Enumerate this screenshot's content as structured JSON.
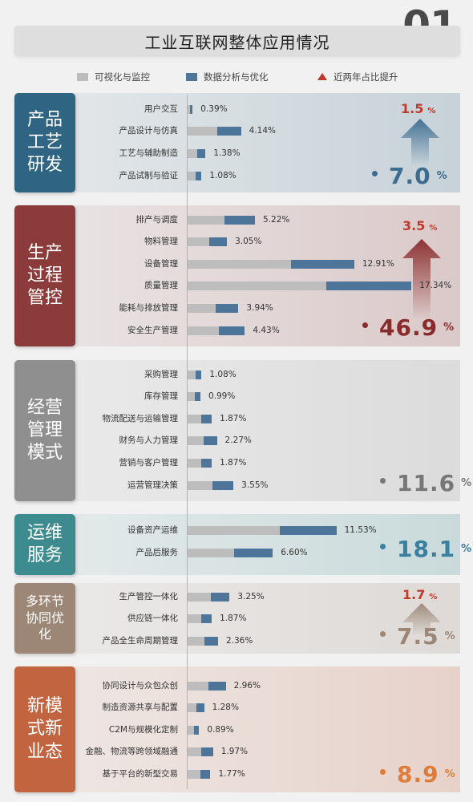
{
  "page": {
    "title": "工业互联网整体应用情况",
    "number": "01"
  },
  "legend": {
    "visual": "可视化与监控",
    "analysis": "数据分析与优化",
    "rise": "近两年占比提升"
  },
  "colors": {
    "visual": "#bdbdbd",
    "analysis": "#4d7599",
    "rise": "#c0392b"
  },
  "chart_data": {
    "type": "bar",
    "series": [
      {
        "name": "可视化与监控"
      },
      {
        "name": "数据分析与优化"
      }
    ],
    "groups": [
      {
        "label": "产品工艺研发",
        "total": "7.0",
        "rise": "1.5",
        "color": "#2f6482",
        "accent": "#3c6d91",
        "items": [
          {
            "name": "用户交互",
            "value": 0.39,
            "value_label": "0.39%"
          },
          {
            "name": "产品设计与仿真",
            "value": 4.14,
            "value_label": "4.14%"
          },
          {
            "name": "工艺与辅助制造",
            "value": 1.38,
            "value_label": "1.38%"
          },
          {
            "name": "产品试制与验证",
            "value": 1.08,
            "value_label": "1.08%"
          }
        ]
      },
      {
        "label": "生产过程管控",
        "total": "46.9",
        "rise": "3.5",
        "color": "#8c3b3b",
        "accent": "#8a2b2b",
        "items": [
          {
            "name": "排产与调度",
            "value": 5.22,
            "value_label": "5.22%"
          },
          {
            "name": "物料管理",
            "value": 3.05,
            "value_label": "3.05%"
          },
          {
            "name": "设备管理",
            "value": 12.91,
            "value_label": "12.91%"
          },
          {
            "name": "质量管理",
            "value": 17.34,
            "value_label": "17.34%"
          },
          {
            "name": "能耗与排放管理",
            "value": 3.94,
            "value_label": "3.94%"
          },
          {
            "name": "安全生产管理",
            "value": 4.43,
            "value_label": "4.43%"
          }
        ]
      },
      {
        "label": "经营管理模式",
        "total": "11.6",
        "rise": "",
        "color": "#8f8f8f",
        "accent": "#777777",
        "items": [
          {
            "name": "采购管理",
            "value": 1.08,
            "value_label": "1.08%"
          },
          {
            "name": "库存管理",
            "value": 0.99,
            "value_label": "0.99%"
          },
          {
            "name": "物流配送与运输管理",
            "value": 1.87,
            "value_label": "1.87%"
          },
          {
            "name": "财务与人力管理",
            "value": 2.27,
            "value_label": "2.27%"
          },
          {
            "name": "营销与客户管理",
            "value": 1.87,
            "value_label": "1.87%"
          },
          {
            "name": "运营管理决策",
            "value": 3.55,
            "value_label": "3.55%"
          }
        ]
      },
      {
        "label": "运维服务",
        "total": "18.1",
        "rise": "",
        "color": "#3d8a8f",
        "accent": "#3a7fa0",
        "items": [
          {
            "name": "设备资产运维",
            "value": 11.53,
            "value_label": "11.53%"
          },
          {
            "name": "产品后服务",
            "value": 6.6,
            "value_label": "6.60%"
          }
        ]
      },
      {
        "label": "多环节协同优化",
        "total": "7.5",
        "rise": "1.7",
        "color": "#9c8676",
        "accent": "#9c8676",
        "items": [
          {
            "name": "生产管控一体化",
            "value": 3.25,
            "value_label": "3.25%"
          },
          {
            "name": "供应链一体化",
            "value": 1.87,
            "value_label": "1.87%"
          },
          {
            "name": "产品全生命周期管理",
            "value": 2.36,
            "value_label": "2.36%"
          }
        ]
      },
      {
        "label": "新模式新业态",
        "total": "8.9",
        "rise": "",
        "color": "#c2643f",
        "accent": "#e07c3a",
        "items": [
          {
            "name": "协同设计与众包众创",
            "value": 2.96,
            "value_label": "2.96%"
          },
          {
            "name": "制造资源共享与配置",
            "value": 1.28,
            "value_label": "1.28%"
          },
          {
            "name": "C2M与规模化定制",
            "value": 0.89,
            "value_label": "0.89%"
          },
          {
            "name": "金融、物流等跨领域融通",
            "value": 1.97,
            "value_label": "1.97%"
          },
          {
            "name": "基于平台的新型交易",
            "value": 1.77,
            "value_label": "1.77%"
          }
        ]
      }
    ]
  }
}
